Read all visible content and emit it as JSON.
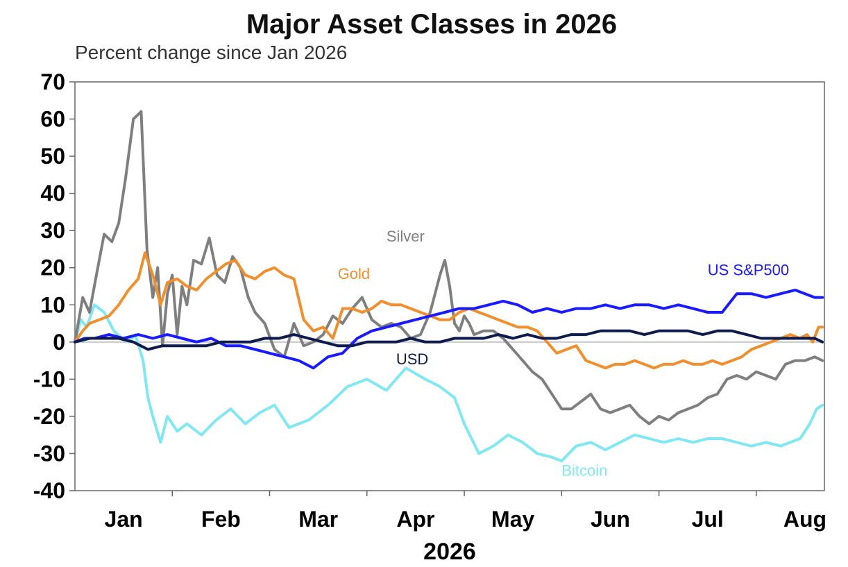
{
  "chart_data": {
    "type": "line",
    "title": "Major Asset Classes in 2026",
    "subtitle": "Percent change since Jan 2026",
    "xlabel": "2026",
    "ylabel": "",
    "ylim": [
      -40,
      70
    ],
    "yticks": [
      70,
      60,
      50,
      40,
      30,
      20,
      10,
      0,
      -10,
      -20,
      -30,
      -40
    ],
    "month_labels": [
      "Jan",
      "Feb",
      "Mar",
      "Apr",
      "May",
      "Jun",
      "Jul",
      "Aug"
    ],
    "x_units": "month position (1 = start of Jan 2026)",
    "xlim": [
      1,
      8.7
    ],
    "grid": false,
    "zero_line": true,
    "series": [
      {
        "name": "Bitcoin",
        "color": "#7fe8f2",
        "x": [
          1.0,
          1.06,
          1.12,
          1.2,
          1.3,
          1.4,
          1.48,
          1.55,
          1.62,
          1.7,
          1.75,
          1.8,
          1.88,
          1.95,
          2.05,
          2.15,
          2.3,
          2.45,
          2.6,
          2.75,
          2.9,
          3.05,
          3.2,
          3.4,
          3.6,
          3.8,
          4.0,
          4.2,
          4.4,
          4.6,
          4.75,
          4.9,
          5.0,
          5.15,
          5.3,
          5.45,
          5.6,
          5.75,
          5.9,
          6.0,
          6.15,
          6.3,
          6.45,
          6.6,
          6.75,
          6.9,
          7.05,
          7.2,
          7.35,
          7.5,
          7.65,
          7.8,
          7.95,
          8.1,
          8.25,
          8.35,
          8.45,
          8.55,
          8.62,
          8.68
        ],
        "y": [
          0,
          6,
          4,
          10,
          8,
          3,
          1,
          0,
          2,
          -5,
          -15,
          -20,
          -27,
          -20,
          -24,
          -22,
          -25,
          -21,
          -18,
          -22,
          -19,
          -17,
          -23,
          -21,
          -17,
          -12,
          -10,
          -13,
          -7,
          -10,
          -12,
          -15,
          -22,
          -30,
          -28,
          -25,
          -27,
          -30,
          -31,
          -32,
          -28,
          -27,
          -29,
          -27,
          -25,
          -26,
          -27,
          -26,
          -27,
          -26,
          -26,
          -27,
          -28,
          -27,
          -28,
          -27,
          -26,
          -22,
          -18,
          -17
        ]
      },
      {
        "name": "Silver",
        "color": "#7f7f7f",
        "x": [
          1.0,
          1.08,
          1.15,
          1.22,
          1.3,
          1.38,
          1.45,
          1.52,
          1.6,
          1.68,
          1.74,
          1.8,
          1.85,
          1.9,
          1.95,
          2.0,
          2.05,
          2.1,
          2.15,
          2.22,
          2.3,
          2.38,
          2.46,
          2.54,
          2.62,
          2.7,
          2.78,
          2.85,
          2.95,
          3.05,
          3.15,
          3.25,
          3.35,
          3.45,
          3.55,
          3.65,
          3.75,
          3.85,
          3.95,
          4.05,
          4.15,
          4.25,
          4.35,
          4.45,
          4.55,
          4.65,
          4.75,
          4.8,
          4.85,
          4.9,
          4.95,
          5.0,
          5.05,
          5.1,
          5.2,
          5.3,
          5.4,
          5.5,
          5.6,
          5.7,
          5.8,
          5.9,
          6.0,
          6.1,
          6.2,
          6.3,
          6.4,
          6.5,
          6.6,
          6.7,
          6.8,
          6.9,
          7.0,
          7.1,
          7.2,
          7.3,
          7.4,
          7.5,
          7.6,
          7.7,
          7.8,
          7.9,
          8.0,
          8.1,
          8.2,
          8.3,
          8.4,
          8.5,
          8.6,
          8.68
        ],
        "y": [
          0,
          12,
          8,
          18,
          29,
          27,
          32,
          44,
          60,
          62,
          25,
          12,
          20,
          -1,
          13,
          18,
          2,
          15,
          10,
          22,
          21,
          28,
          18,
          16,
          23,
          20,
          12,
          8,
          5,
          -2,
          -4,
          5,
          -1,
          0,
          2,
          7,
          5,
          9,
          12,
          6,
          4,
          5,
          4,
          1,
          2,
          8,
          18,
          22,
          15,
          5,
          3,
          7,
          5,
          2,
          3,
          3,
          1,
          -2,
          -5,
          -8,
          -10,
          -14,
          -18,
          -18,
          -16,
          -14,
          -18,
          -19,
          -18,
          -17,
          -20,
          -22,
          -20,
          -21,
          -19,
          -18,
          -17,
          -15,
          -14,
          -10,
          -9,
          -10,
          -8,
          -9,
          -10,
          -6,
          -5,
          -5,
          -4,
          -5
        ]
      },
      {
        "name": "Gold",
        "color": "#f28e2b",
        "x": [
          1.0,
          1.08,
          1.15,
          1.25,
          1.35,
          1.45,
          1.55,
          1.65,
          1.72,
          1.8,
          1.88,
          1.95,
          2.05,
          2.15,
          2.25,
          2.35,
          2.45,
          2.55,
          2.65,
          2.75,
          2.85,
          2.95,
          3.05,
          3.15,
          3.25,
          3.35,
          3.45,
          3.55,
          3.65,
          3.75,
          3.85,
          3.95,
          4.05,
          4.15,
          4.25,
          4.35,
          4.45,
          4.55,
          4.65,
          4.75,
          4.85,
          4.95,
          5.05,
          5.15,
          5.25,
          5.35,
          5.45,
          5.55,
          5.65,
          5.75,
          5.85,
          5.95,
          6.05,
          6.15,
          6.25,
          6.35,
          6.45,
          6.55,
          6.65,
          6.75,
          6.85,
          6.95,
          7.05,
          7.15,
          7.25,
          7.35,
          7.45,
          7.55,
          7.65,
          7.75,
          7.85,
          7.95,
          8.05,
          8.15,
          8.25,
          8.35,
          8.45,
          8.52,
          8.58,
          8.64,
          8.68
        ],
        "y": [
          0,
          3,
          5,
          6,
          7,
          10,
          14,
          17,
          24,
          18,
          10,
          16,
          17,
          15,
          14,
          17,
          19,
          21,
          22,
          18,
          17,
          19,
          20,
          18,
          17,
          6,
          3,
          4,
          1,
          9,
          9,
          8,
          9,
          11,
          10,
          10,
          9,
          8,
          7,
          6,
          6,
          8,
          9,
          8,
          7,
          6,
          5,
          4,
          4,
          3,
          0,
          -3,
          -2,
          -1,
          -5,
          -6,
          -7,
          -6,
          -6,
          -5,
          -6,
          -7,
          -6,
          -6,
          -5,
          -6,
          -6,
          -5,
          -6,
          -5,
          -4,
          -2,
          -1,
          0,
          1,
          2,
          1,
          2,
          0,
          4,
          4
        ]
      },
      {
        "name": "US S&P500",
        "color": "#1a1aff",
        "x": [
          1.0,
          1.1,
          1.2,
          1.35,
          1.5,
          1.65,
          1.8,
          1.95,
          2.1,
          2.25,
          2.4,
          2.55,
          2.7,
          2.85,
          3.0,
          3.15,
          3.3,
          3.45,
          3.6,
          3.75,
          3.9,
          4.05,
          4.2,
          4.35,
          4.5,
          4.65,
          4.8,
          4.95,
          5.1,
          5.25,
          5.4,
          5.55,
          5.7,
          5.85,
          6.0,
          6.15,
          6.3,
          6.45,
          6.6,
          6.75,
          6.9,
          7.05,
          7.2,
          7.35,
          7.5,
          7.65,
          7.8,
          7.95,
          8.1,
          8.25,
          8.4,
          8.5,
          8.6,
          8.68
        ],
        "y": [
          0,
          1,
          1,
          2,
          1,
          2,
          1,
          2,
          1,
          0,
          1,
          -1,
          -1,
          -2,
          -3,
          -4,
          -5,
          -7,
          -4,
          -3,
          1,
          3,
          4,
          5,
          6,
          7,
          8,
          9,
          9,
          10,
          11,
          10,
          8,
          9,
          8,
          9,
          9,
          10,
          9,
          10,
          10,
          9,
          10,
          9,
          8,
          8,
          13,
          13,
          12,
          13,
          14,
          13,
          12,
          12
        ]
      },
      {
        "name": "USD",
        "color": "#0d1b4d",
        "x": [
          1.0,
          1.15,
          1.3,
          1.45,
          1.6,
          1.75,
          1.9,
          2.05,
          2.2,
          2.35,
          2.5,
          2.65,
          2.8,
          2.95,
          3.1,
          3.25,
          3.4,
          3.55,
          3.7,
          3.85,
          4.0,
          4.15,
          4.3,
          4.45,
          4.6,
          4.75,
          4.9,
          5.05,
          5.2,
          5.35,
          5.5,
          5.65,
          5.8,
          5.95,
          6.1,
          6.25,
          6.4,
          6.55,
          6.7,
          6.85,
          7.0,
          7.15,
          7.3,
          7.45,
          7.6,
          7.75,
          7.9,
          8.05,
          8.2,
          8.35,
          8.5,
          8.6,
          8.68
        ],
        "y": [
          0,
          1,
          1,
          1,
          0,
          -2,
          -1,
          -1,
          -1,
          -1,
          0,
          0,
          0,
          1,
          1,
          2,
          1,
          0,
          -1,
          -1,
          0,
          0,
          0,
          1,
          0,
          0,
          1,
          1,
          1,
          2,
          1,
          2,
          1,
          1,
          2,
          2,
          3,
          3,
          3,
          2,
          3,
          3,
          3,
          2,
          3,
          3,
          2,
          1,
          1,
          1,
          1,
          1,
          0
        ]
      }
    ],
    "annotations": [
      {
        "text": "Silver",
        "x": 4.2,
        "y": 27,
        "color": "#7f7f7f"
      },
      {
        "text": "Gold",
        "x": 3.7,
        "y": 17,
        "color": "#f28e2b"
      },
      {
        "text": "US S&P500",
        "x": 7.5,
        "y": 18,
        "color": "#1a1aff"
      },
      {
        "text": "USD",
        "x": 4.3,
        "y": -6,
        "color": "#0d1b4d"
      },
      {
        "text": "Bitcoin",
        "x": 6.0,
        "y": -36,
        "color": "#7fe8f2"
      }
    ]
  }
}
